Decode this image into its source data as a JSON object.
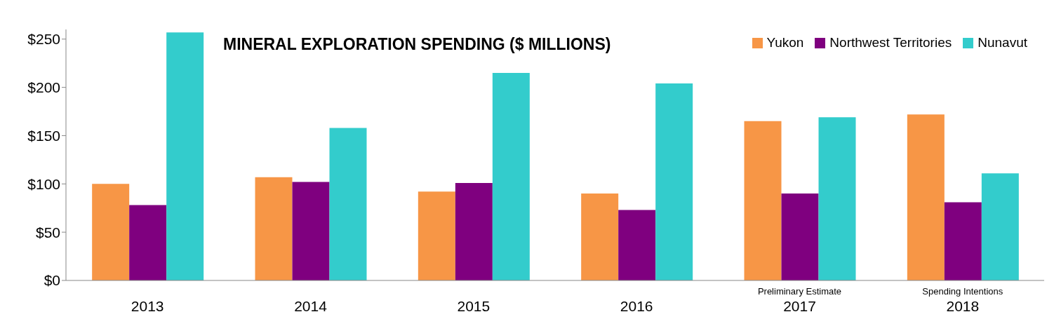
{
  "chart_data": {
    "type": "bar",
    "title": "MINERAL EXPLORATION SPENDING ($ MILLIONS)",
    "categories": [
      "2013",
      "2014",
      "2015",
      "2016",
      "2017",
      "2018"
    ],
    "series": [
      {
        "name": "Yukon",
        "color": "#f79646",
        "values": [
          100,
          107,
          92,
          90,
          165,
          172
        ]
      },
      {
        "name": "Northwest Territories",
        "color": "#7f007f",
        "values": [
          78,
          102,
          101,
          73,
          90,
          81
        ]
      },
      {
        "name": "Nunavut",
        "color": "#33cccc",
        "values": [
          257,
          158,
          215,
          204,
          169,
          111
        ]
      }
    ],
    "ylim": [
      0,
      260
    ],
    "yticks": [
      {
        "value": 0,
        "label": "$0"
      },
      {
        "value": 50,
        "label": "$50"
      },
      {
        "value": 100,
        "label": "$100"
      },
      {
        "value": 150,
        "label": "$150"
      },
      {
        "value": 200,
        "label": "$200"
      },
      {
        "value": 250,
        "label": "$250"
      }
    ],
    "annotations": [
      "Preliminary Estimate",
      "Spending Intentions"
    ],
    "grid": false,
    "legend": "top right"
  }
}
